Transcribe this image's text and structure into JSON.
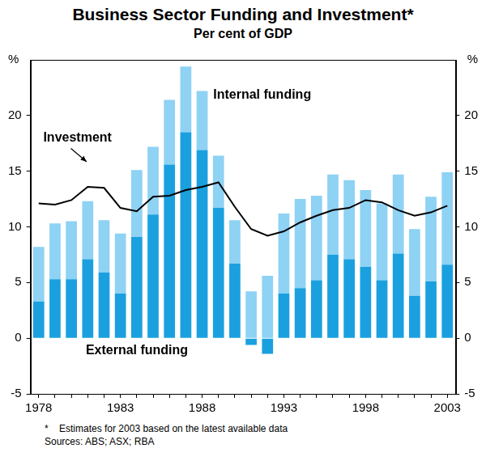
{
  "chart_data": {
    "type": "bar",
    "title": "Business Sector Funding and Investment*",
    "subtitle": "Per cent of GDP",
    "ylabel": "%",
    "y2label": "%",
    "categories": [
      "1978",
      null,
      null,
      null,
      null,
      "1983",
      null,
      null,
      null,
      null,
      "1988",
      null,
      null,
      null,
      null,
      "1993",
      null,
      null,
      null,
      null,
      "1998",
      null,
      null,
      null,
      null,
      "2003"
    ],
    "series": [
      {
        "name": "External funding",
        "type": "bar",
        "color": "#1ba0df",
        "values": [
          3.3,
          5.3,
          5.3,
          7.1,
          5.9,
          4.0,
          9.1,
          11.1,
          15.6,
          18.5,
          16.9,
          11.7,
          6.7,
          -0.6,
          -1.4,
          4.0,
          4.5,
          5.2,
          7.5,
          7.1,
          6.4,
          5.2,
          7.6,
          3.8,
          5.1,
          6.6
        ]
      },
      {
        "name": "Internal funding",
        "type": "bar",
        "color": "#8ed2f4",
        "values": [
          4.9,
          5.0,
          5.2,
          5.2,
          4.7,
          5.4,
          6.0,
          6.1,
          5.8,
          5.9,
          5.3,
          4.7,
          3.9,
          4.2,
          5.6,
          7.2,
          8.0,
          7.6,
          7.2,
          7.1,
          6.9,
          6.9,
          7.1,
          6.0,
          7.6,
          8.3
        ]
      },
      {
        "name": "Investment",
        "type": "line",
        "color": "#000000",
        "values": [
          12.1,
          12.0,
          12.4,
          13.6,
          13.5,
          11.7,
          11.4,
          12.7,
          12.8,
          13.3,
          13.6,
          14.0,
          11.8,
          9.8,
          9.2,
          9.6,
          10.4,
          11.0,
          11.5,
          11.7,
          12.4,
          12.2,
          11.5,
          11.0,
          11.3,
          11.9
        ]
      }
    ],
    "stacked": true,
    "ylim": [
      -5,
      25
    ],
    "yticks": [
      -5,
      0,
      5,
      10,
      15,
      20
    ],
    "y2lim": [
      -5,
      25
    ],
    "y2ticks": [
      -5,
      0,
      5,
      10,
      15,
      20
    ],
    "grid": false,
    "notes": [
      "*    Estimates for 2003 based on the latest available data",
      "Sources: ABS; ASX; RBA"
    ]
  }
}
